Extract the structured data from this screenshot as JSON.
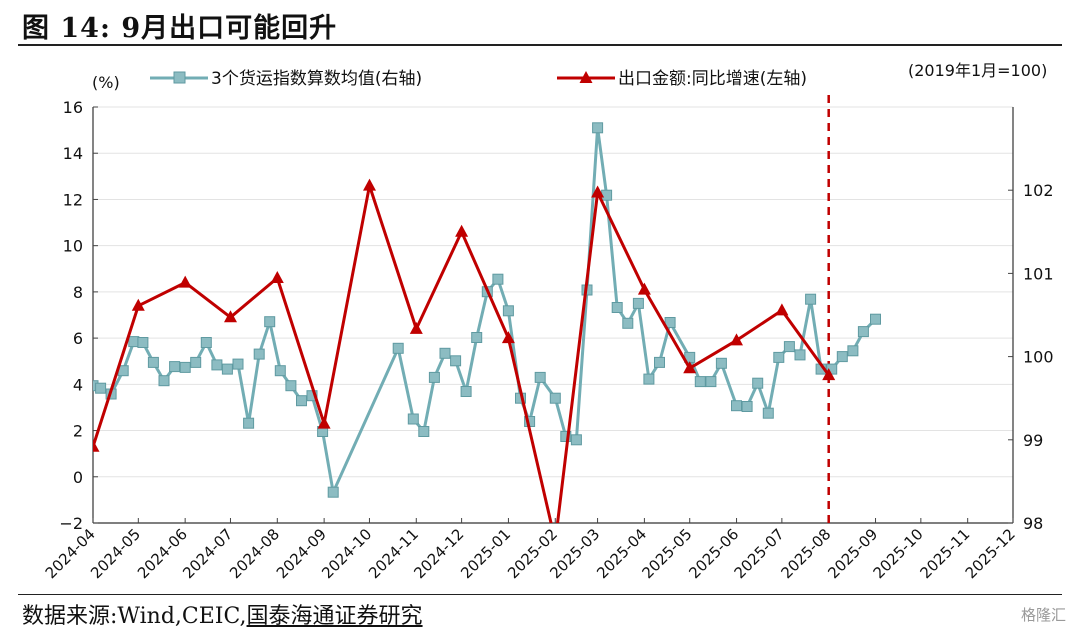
{
  "page": {
    "title": "图 14:  9月出口可能回升",
    "source_prefix": "数据来源:Wind,CEIC,",
    "source_org": "国泰海通证券研究",
    "watermark": "格隆汇"
  },
  "chart_data": {
    "type": "line",
    "left_axis_unit": "(%)",
    "right_axis_note": "(2019年1月=100)",
    "left_ylim": [
      -2,
      16
    ],
    "left_yticks": [
      -2,
      0,
      2,
      4,
      6,
      8,
      10,
      12,
      14,
      16
    ],
    "right_ylim": [
      98,
      103
    ],
    "right_yticks": [
      98,
      99,
      100,
      101,
      102
    ],
    "x_ticks": [
      "2024-04",
      "2024-05",
      "2024-06",
      "2024-07",
      "2024-08",
      "2024-09",
      "2024-10",
      "2024-11",
      "2024-12",
      "2025-01",
      "2025-02",
      "2025-03",
      "2025-04",
      "2025-05",
      "2025-06",
      "2025-07",
      "2025-08",
      "2025-09",
      "2025-10",
      "2025-11",
      "2025-12"
    ],
    "x_range": [
      "2024-04-01",
      "2025-12-01"
    ],
    "grid": "horizontal",
    "legend_position": "top",
    "vline": {
      "date": "2025-08-01",
      "style": "dashed",
      "color": "#c00000"
    },
    "series": [
      {
        "name": "3个货运指数算数均值(右轴)",
        "axis": "right",
        "color": "#72adb4",
        "marker": "square",
        "points": [
          [
            "2024-04-01",
            99.65
          ],
          [
            "2024-04-06",
            99.62
          ],
          [
            "2024-04-13",
            99.55
          ],
          [
            "2024-04-21",
            99.83
          ],
          [
            "2024-04-28",
            100.18
          ],
          [
            "2024-05-04",
            100.17
          ],
          [
            "2024-05-11",
            99.93
          ],
          [
            "2024-05-18",
            99.71
          ],
          [
            "2024-05-25",
            99.88
          ],
          [
            "2024-06-01",
            99.87
          ],
          [
            "2024-06-08",
            99.93
          ],
          [
            "2024-06-15",
            100.17
          ],
          [
            "2024-06-22",
            99.9
          ],
          [
            "2024-06-29",
            99.85
          ],
          [
            "2024-07-06",
            99.91
          ],
          [
            "2024-07-13",
            99.2
          ],
          [
            "2024-07-20",
            100.03
          ],
          [
            "2024-07-27",
            100.42
          ],
          [
            "2024-08-03",
            99.83
          ],
          [
            "2024-08-10",
            99.65
          ],
          [
            "2024-08-17",
            99.47
          ],
          [
            "2024-08-24",
            99.53
          ],
          [
            "2024-08-31",
            99.1
          ],
          [
            "2024-09-07",
            98.37
          ],
          [
            "2024-10-20",
            100.1
          ],
          [
            "2024-10-30",
            99.25
          ],
          [
            "2024-11-06",
            99.1
          ],
          [
            "2024-11-13",
            99.75
          ],
          [
            "2024-11-20",
            100.04
          ],
          [
            "2024-11-27",
            99.95
          ],
          [
            "2024-12-04",
            99.58
          ],
          [
            "2024-12-11",
            100.23
          ],
          [
            "2024-12-18",
            100.78
          ],
          [
            "2024-12-25",
            100.93
          ],
          [
            "2025-01-01",
            100.55
          ],
          [
            "2025-01-09",
            99.5
          ],
          [
            "2025-01-15",
            99.22
          ],
          [
            "2025-01-22",
            99.75
          ],
          [
            "2025-02-01",
            99.5
          ],
          [
            "2025-02-08",
            99.04
          ],
          [
            "2025-02-15",
            99.0
          ],
          [
            "2025-02-22",
            100.8
          ],
          [
            "2025-03-01",
            102.75
          ],
          [
            "2025-03-07",
            101.94
          ],
          [
            "2025-03-14",
            100.59
          ],
          [
            "2025-03-21",
            100.4
          ],
          [
            "2025-03-28",
            100.64
          ],
          [
            "2025-04-04",
            99.73
          ],
          [
            "2025-04-11",
            99.93
          ],
          [
            "2025-04-18",
            100.41
          ],
          [
            "2025-05-01",
            99.99
          ],
          [
            "2025-05-08",
            99.7
          ],
          [
            "2025-05-15",
            99.7
          ],
          [
            "2025-05-22",
            99.92
          ],
          [
            "2025-06-01",
            99.41
          ],
          [
            "2025-06-08",
            99.4
          ],
          [
            "2025-06-15",
            99.68
          ],
          [
            "2025-06-22",
            99.32
          ],
          [
            "2025-06-29",
            99.99
          ],
          [
            "2025-07-06",
            100.12
          ],
          [
            "2025-07-13",
            100.02
          ],
          [
            "2025-07-20",
            100.69
          ],
          [
            "2025-07-27",
            99.85
          ],
          [
            "2025-08-03",
            99.85
          ],
          [
            "2025-08-10",
            100.0
          ],
          [
            "2025-08-17",
            100.07
          ],
          [
            "2025-08-24",
            100.3
          ],
          [
            "2025-09-01",
            100.45
          ]
        ]
      },
      {
        "name": "出口金额:同比增速(左轴)",
        "axis": "left",
        "color": "#c00000",
        "marker": "triangle",
        "points": [
          [
            "2024-04-01",
            1.3
          ],
          [
            "2024-05-01",
            7.4
          ],
          [
            "2024-06-01",
            8.4
          ],
          [
            "2024-07-01",
            6.9
          ],
          [
            "2024-08-01",
            8.6
          ],
          [
            "2024-09-01",
            2.3
          ],
          [
            "2024-10-01",
            12.6
          ],
          [
            "2024-11-01",
            6.4
          ],
          [
            "2024-12-01",
            10.6
          ],
          [
            "2025-01-01",
            6.0
          ],
          [
            "2025-02-01",
            -2.8
          ],
          [
            "2025-03-01",
            12.3
          ],
          [
            "2025-04-01",
            8.1
          ],
          [
            "2025-05-01",
            4.7
          ],
          [
            "2025-06-01",
            5.9
          ],
          [
            "2025-07-01",
            7.2
          ],
          [
            "2025-08-01",
            4.4
          ]
        ]
      }
    ]
  }
}
